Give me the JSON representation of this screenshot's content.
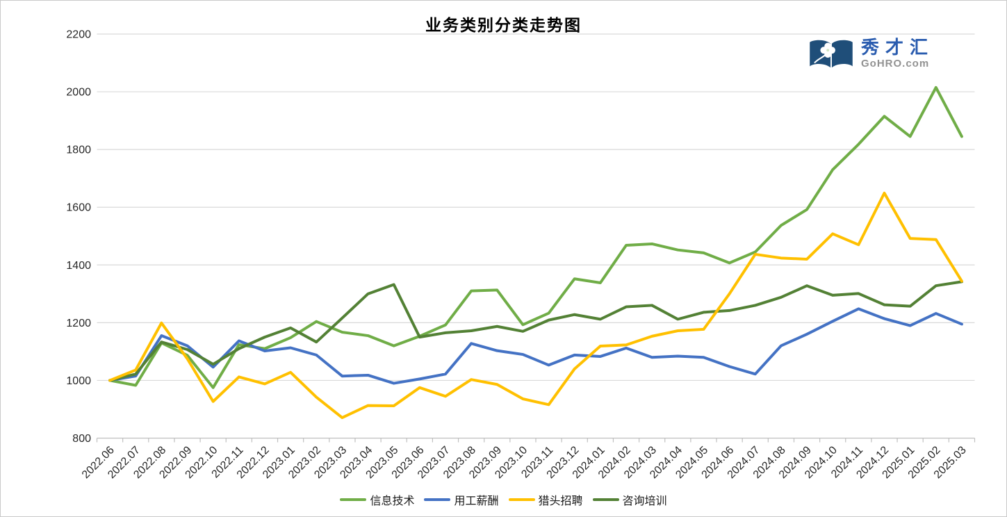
{
  "page": {
    "title": "业务类别分类走势图"
  },
  "logo": {
    "brand": "秀才汇",
    "domain": "GoHRO.com",
    "icon": "open-book-with-clover",
    "icon_color": "#1F4E79"
  },
  "chart_data": {
    "type": "line",
    "title": "业务类别分类走势图",
    "xlabel": "",
    "ylabel": "",
    "ylim": [
      800,
      2200
    ],
    "ytick_step": 200,
    "yticks": [
      "800",
      "1000",
      "1200",
      "1400",
      "1600",
      "1800",
      "2000",
      "2200"
    ],
    "grid": true,
    "legend_position": "bottom",
    "categories": [
      "2022.06",
      "2022.07",
      "2022.08",
      "2022.09",
      "2022.10",
      "2022.11",
      "2022.12",
      "2023.01",
      "2023.02",
      "2023.03",
      "2023.04",
      "2023.05",
      "2023.06",
      "2023.07",
      "2023.08",
      "2023.09",
      "2023.10",
      "2023.11",
      "2023.12",
      "2024.01",
      "2024.02",
      "2024.03",
      "2024.04",
      "2024.05",
      "2024.06",
      "2024.07",
      "2024.08",
      "2024.09",
      "2024.10",
      "2024.11",
      "2024.12",
      "2025.01",
      "2025.02",
      "2025.03"
    ],
    "series": [
      {
        "name": "信息技术",
        "color": "#70AD47",
        "values": [
          1000,
          983,
          1130,
          1087,
          975,
          1124,
          1110,
          1148,
          1204,
          1167,
          1155,
          1120,
          1153,
          1192,
          1310,
          1313,
          1193,
          1233,
          1352,
          1338,
          1468,
          1473,
          1452,
          1442,
          1407,
          1445,
          1537,
          1592,
          1730,
          1818,
          1915,
          1845,
          2015,
          1845
        ]
      },
      {
        "name": "用工薪酬",
        "color": "#4472C4",
        "values": [
          1000,
          1015,
          1155,
          1120,
          1046,
          1137,
          1102,
          1113,
          1088,
          1015,
          1018,
          990,
          1005,
          1022,
          1128,
          1103,
          1090,
          1053,
          1088,
          1083,
          1112,
          1080,
          1084,
          1080,
          1048,
          1022,
          1120,
          1160,
          1205,
          1248,
          1214,
          1190,
          1232,
          1195
        ]
      },
      {
        "name": "猎头招聘",
        "color": "#FFC000",
        "values": [
          1000,
          1036,
          1199,
          1075,
          927,
          1012,
          988,
          1028,
          942,
          871,
          913,
          912,
          975,
          945,
          1003,
          986,
          936,
          916,
          1040,
          1119,
          1123,
          1153,
          1172,
          1177,
          1300,
          1437,
          1424,
          1420,
          1508,
          1470,
          1649,
          1492,
          1488,
          1344
        ]
      },
      {
        "name": "咨询培训",
        "color": "#538135",
        "values": [
          1000,
          1022,
          1133,
          1107,
          1056,
          1110,
          1150,
          1182,
          1133,
          1216,
          1300,
          1332,
          1150,
          1165,
          1172,
          1187,
          1170,
          1209,
          1228,
          1212,
          1255,
          1260,
          1212,
          1236,
          1242,
          1260,
          1288,
          1328,
          1295,
          1301,
          1262,
          1257,
          1328,
          1342
        ]
      }
    ],
    "draw_order": [
      0,
      1,
      3,
      2
    ],
    "colors": {
      "gridline": "#D9D9D9",
      "axis": "#BFBFBF",
      "tick_label": "#262626"
    }
  }
}
